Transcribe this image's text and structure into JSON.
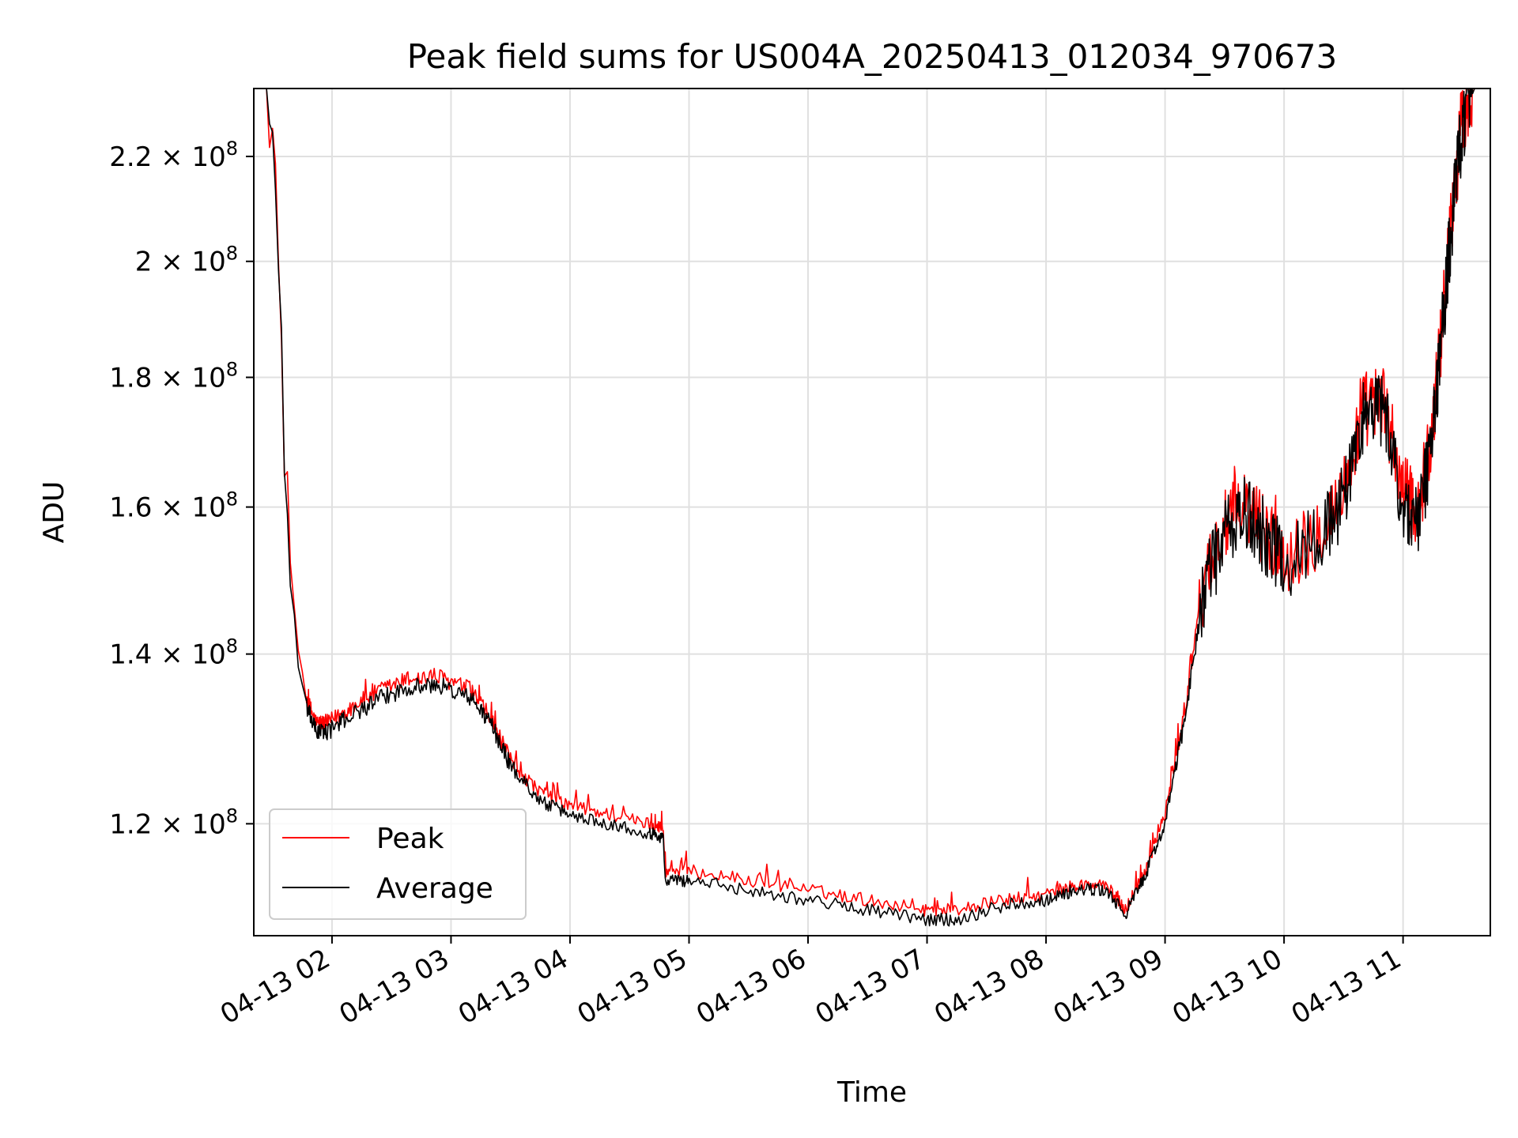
{
  "chart_data": {
    "type": "line",
    "title": "Peak field sums for US004A_20250413_012034_970673",
    "xlabel": "Time",
    "ylabel": "ADU",
    "x_type": "time",
    "xlim": [
      "2025-04-13 01:20:34",
      "2025-04-13 11:44:00"
    ],
    "ylim": [
      108400000.0,
      234000000.0
    ],
    "yscale": "log",
    "grid": true,
    "legend_location": "lower-left",
    "x_ticks": [
      "2025-04-13 02:00",
      "2025-04-13 03:00",
      "2025-04-13 04:00",
      "2025-04-13 05:00",
      "2025-04-13 06:00",
      "2025-04-13 07:00",
      "2025-04-13 08:00",
      "2025-04-13 09:00",
      "2025-04-13 10:00",
      "2025-04-13 11:00"
    ],
    "x_tick_labels": [
      "04-13 02",
      "04-13 03",
      "04-13 04",
      "04-13 05",
      "04-13 06",
      "04-13 07",
      "04-13 08",
      "04-13 09",
      "04-13 10",
      "04-13 11"
    ],
    "y_ticks": [
      120000000.0,
      140000000.0,
      160000000.0,
      180000000.0,
      200000000.0,
      220000000.0
    ],
    "y_tick_mantissas": [
      "1.2",
      "1.4",
      "1.6",
      "1.8",
      "2",
      "2.2"
    ],
    "y_tick_base": "10",
    "y_tick_exponent": "8",
    "series": [
      {
        "name": "Peak",
        "color": "#ff0000",
        "points": [
          [
            "2025-04-13 01:20:34",
            234000000.0
          ],
          [
            "2025-04-13 01:27",
            234000000.0
          ],
          [
            "2025-04-13 01:30",
            225000000.0
          ],
          [
            "2025-04-13 01:33",
            200000000.0
          ],
          [
            "2025-04-13 01:36",
            170000000.0
          ],
          [
            "2025-04-13 01:39",
            150000000.0
          ],
          [
            "2025-04-13 01:43",
            139000000.0
          ],
          [
            "2025-04-13 01:47",
            134500000.0
          ],
          [
            "2025-04-13 01:52",
            131500000.0
          ],
          [
            "2025-04-13 01:58",
            131500000.0
          ],
          [
            "2025-04-13 02:10",
            133500000.0
          ],
          [
            "2025-04-13 02:25",
            135500000.0
          ],
          [
            "2025-04-13 02:40",
            137000000.0
          ],
          [
            "2025-04-13 02:55",
            137000000.0
          ],
          [
            "2025-04-13 03:10",
            135500000.0
          ],
          [
            "2025-04-13 03:20",
            132000000.0
          ],
          [
            "2025-04-13 03:30",
            127000000.0
          ],
          [
            "2025-04-13 03:45",
            123500000.0
          ],
          [
            "2025-04-13 04:00",
            122000000.0
          ],
          [
            "2025-04-13 04:20",
            121000000.0
          ],
          [
            "2025-04-13 04:40",
            120000000.0
          ],
          [
            "2025-04-13 04:47",
            119500000.0
          ],
          [
            "2025-04-13 04:48",
            115000000.0
          ],
          [
            "2025-04-13 05:00",
            115000000.0
          ],
          [
            "2025-04-13 05:30",
            114000000.0
          ],
          [
            "2025-04-13 06:00",
            113000000.0
          ],
          [
            "2025-04-13 06:30",
            112000000.0
          ],
          [
            "2025-04-13 06:58",
            111000000.0
          ],
          [
            "2025-04-13 07:15",
            111000000.0
          ],
          [
            "2025-04-13 07:40",
            112000000.0
          ],
          [
            "2025-04-13 08:00",
            112500000.0
          ],
          [
            "2025-04-13 08:15",
            113500000.0
          ],
          [
            "2025-04-13 08:30",
            113500000.0
          ],
          [
            "2025-04-13 08:40",
            111000000.0
          ],
          [
            "2025-04-13 08:50",
            115000000.0
          ],
          [
            "2025-04-13 09:00",
            121000000.0
          ],
          [
            "2025-04-13 09:10",
            133000000.0
          ],
          [
            "2025-04-13 09:20",
            150000000.0
          ],
          [
            "2025-04-13 09:30",
            157000000.0
          ],
          [
            "2025-04-13 09:40",
            160000000.0
          ],
          [
            "2025-04-13 09:50",
            157000000.0
          ],
          [
            "2025-04-13 10:00",
            153000000.0
          ],
          [
            "2025-04-13 10:15",
            156000000.0
          ],
          [
            "2025-04-13 10:30",
            162000000.0
          ],
          [
            "2025-04-13 10:40",
            175000000.0
          ],
          [
            "2025-04-13 10:50",
            176000000.0
          ],
          [
            "2025-04-13 11:00",
            162000000.0
          ],
          [
            "2025-04-13 11:08",
            160000000.0
          ],
          [
            "2025-04-13 11:15",
            172000000.0
          ],
          [
            "2025-04-13 11:20",
            190000000.0
          ],
          [
            "2025-04-13 11:25",
            210000000.0
          ],
          [
            "2025-04-13 11:30",
            228000000.0
          ],
          [
            "2025-04-13 11:36",
            234000000.0
          ],
          [
            "2025-04-13 11:44",
            234000000.0
          ]
        ]
      },
      {
        "name": "Average",
        "color": "#000000",
        "points": [
          [
            "2025-04-13 01:20:34",
            234000000.0
          ],
          [
            "2025-04-13 01:27",
            234000000.0
          ],
          [
            "2025-04-13 01:30",
            225000000.0
          ],
          [
            "2025-04-13 01:33",
            200000000.0
          ],
          [
            "2025-04-13 01:36",
            170000000.0
          ],
          [
            "2025-04-13 01:39",
            150000000.0
          ],
          [
            "2025-04-13 01:43",
            138500000.0
          ],
          [
            "2025-04-13 01:47",
            133500000.0
          ],
          [
            "2025-04-13 01:52",
            130500000.0
          ],
          [
            "2025-04-13 01:58",
            130500000.0
          ],
          [
            "2025-04-13 02:10",
            132500000.0
          ],
          [
            "2025-04-13 02:25",
            134500000.0
          ],
          [
            "2025-04-13 02:40",
            136000000.0
          ],
          [
            "2025-04-13 02:55",
            136000000.0
          ],
          [
            "2025-04-13 03:10",
            134500000.0
          ],
          [
            "2025-04-13 03:20",
            131500000.0
          ],
          [
            "2025-04-13 03:30",
            126500000.0
          ],
          [
            "2025-04-13 03:45",
            122500000.0
          ],
          [
            "2025-04-13 04:00",
            121000000.0
          ],
          [
            "2025-04-13 04:20",
            120000000.0
          ],
          [
            "2025-04-13 04:40",
            119000000.0
          ],
          [
            "2025-04-13 04:47",
            118500000.0
          ],
          [
            "2025-04-13 04:48",
            114000000.0
          ],
          [
            "2025-04-13 05:00",
            114000000.0
          ],
          [
            "2025-04-13 05:30",
            113000000.0
          ],
          [
            "2025-04-13 06:00",
            112000000.0
          ],
          [
            "2025-04-13 06:30",
            111000000.0
          ],
          [
            "2025-04-13 06:58",
            110000000.0
          ],
          [
            "2025-04-13 07:15",
            110000000.0
          ],
          [
            "2025-04-13 07:40",
            111500000.0
          ],
          [
            "2025-04-13 08:00",
            112000000.0
          ],
          [
            "2025-04-13 08:15",
            113000000.0
          ],
          [
            "2025-04-13 08:30",
            113000000.0
          ],
          [
            "2025-04-13 08:40",
            110500000.0
          ],
          [
            "2025-04-13 08:50",
            114500000.0
          ],
          [
            "2025-04-13 09:00",
            120000000.0
          ],
          [
            "2025-04-13 09:10",
            132000000.0
          ],
          [
            "2025-04-13 09:20",
            149000000.0
          ],
          [
            "2025-04-13 09:30",
            156000000.0
          ],
          [
            "2025-04-13 09:40",
            159000000.0
          ],
          [
            "2025-04-13 09:50",
            156000000.0
          ],
          [
            "2025-04-13 10:00",
            152000000.0
          ],
          [
            "2025-04-13 10:15",
            155000000.0
          ],
          [
            "2025-04-13 10:30",
            161000000.0
          ],
          [
            "2025-04-13 10:40",
            174000000.0
          ],
          [
            "2025-04-13 10:50",
            175000000.0
          ],
          [
            "2025-04-13 11:00",
            160000000.0
          ],
          [
            "2025-04-13 11:08",
            158000000.0
          ],
          [
            "2025-04-13 11:15",
            171000000.0
          ],
          [
            "2025-04-13 11:20",
            189000000.0
          ],
          [
            "2025-04-13 11:25",
            209000000.0
          ],
          [
            "2025-04-13 11:30",
            227000000.0
          ],
          [
            "2025-04-13 11:36",
            234000000.0
          ],
          [
            "2025-04-13 11:44",
            234000000.0
          ]
        ]
      }
    ]
  }
}
